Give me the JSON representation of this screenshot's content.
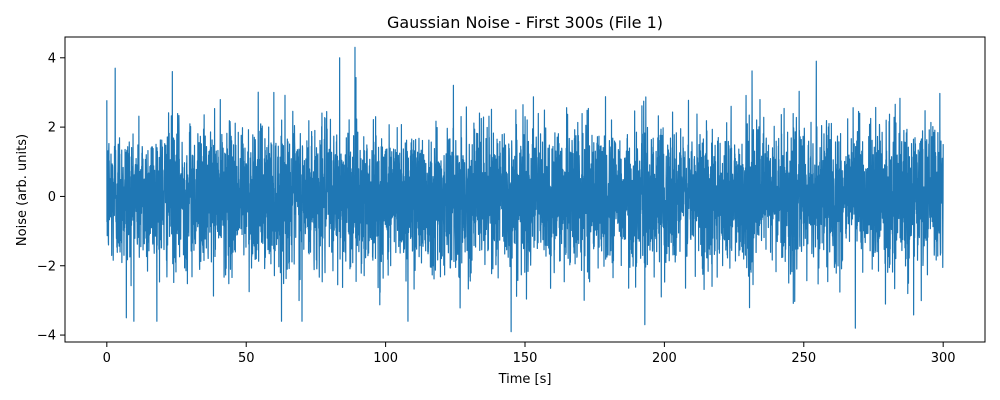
{
  "chart_data": {
    "type": "line",
    "title": "Gaussian Noise - First 300s (File 1)",
    "xlabel": "Time [s]",
    "ylabel": "Noise (arb. units)",
    "xlim": [
      -15,
      315
    ],
    "ylim": [
      -4.2,
      4.6
    ],
    "xticks": [
      0,
      50,
      100,
      150,
      200,
      250,
      300
    ],
    "yticks": [
      -4,
      -2,
      0,
      2,
      4
    ],
    "grid": false,
    "color": "#1f77b4",
    "series": [
      {
        "x_start": 0,
        "x_end": 300,
        "sigma": 1.0,
        "envelope_min": -3.9,
        "envelope_max": 4.3,
        "notable_peaks": [
          {
            "x": 3,
            "y": 3.7
          },
          {
            "x": 23.5,
            "y": 3.6
          },
          {
            "x": 83.5,
            "y": 4.0
          },
          {
            "x": 89,
            "y": 4.3
          },
          {
            "x": 145,
            "y": -3.9
          },
          {
            "x": 193,
            "y": -3.7
          },
          {
            "x": 254.5,
            "y": 3.9
          },
          {
            "x": 268.5,
            "y": -3.8
          },
          {
            "x": 70,
            "y": -3.6
          },
          {
            "x": 7,
            "y": -3.5
          },
          {
            "x": 108,
            "y": -3.6
          }
        ]
      }
    ]
  }
}
